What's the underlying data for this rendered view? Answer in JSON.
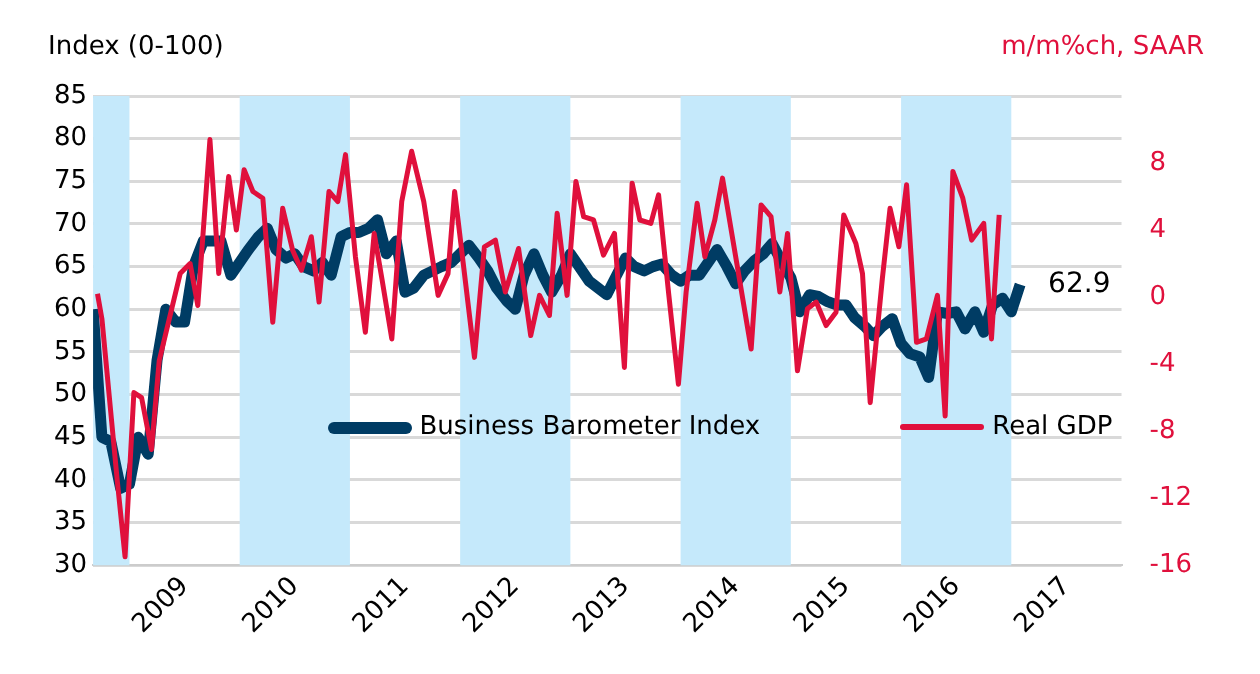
{
  "chart_data": {
    "type": "line",
    "ylabel": "Index (0-100)",
    "y2label": "m/m%ch, SAAR",
    "xlim": [
      2008.67,
      2018
    ],
    "xticks": [
      {
        "value": 2009.5,
        "label": "2009"
      },
      {
        "value": 2010.5,
        "label": "2010"
      },
      {
        "value": 2011.5,
        "label": "2011"
      },
      {
        "value": 2012.5,
        "label": "2012"
      },
      {
        "value": 2013.5,
        "label": "2013"
      },
      {
        "value": 2014.5,
        "label": "2014"
      },
      {
        "value": 2015.5,
        "label": "2015"
      },
      {
        "value": 2016.5,
        "label": "2016"
      },
      {
        "value": 2017.5,
        "label": "2017"
      }
    ],
    "ylim": [
      30,
      85
    ],
    "yticks": [
      30,
      35,
      40,
      45,
      50,
      55,
      60,
      65,
      70,
      75,
      80,
      85
    ],
    "y2lim": [
      -16,
      12
    ],
    "y2ticks": [
      -16,
      -12,
      -8,
      -4,
      0,
      4,
      8
    ],
    "grid": "y",
    "legend": "bottom",
    "marker": "none",
    "bands": [
      {
        "axis": "x",
        "from": 2008.67,
        "to": 2009,
        "color": "#c5e9fb"
      },
      {
        "axis": "x",
        "from": 2010,
        "to": 2011,
        "color": "#c5e9fb"
      },
      {
        "axis": "x",
        "from": 2012,
        "to": 2013,
        "color": "#c5e9fb"
      },
      {
        "axis": "x",
        "from": 2014,
        "to": 2015,
        "color": "#c5e9fb"
      },
      {
        "axis": "x",
        "from": 2016,
        "to": 2017,
        "color": "#c5e9fb"
      }
    ],
    "annotations": [
      {
        "text": "62.9",
        "x": 2017.08,
        "y": 62.9
      }
    ],
    "series": [
      {
        "name": "Business Barometer Index",
        "color": "#003c64",
        "x": [
          2008.67,
          2008.75,
          2008.83,
          2008.92,
          2009.0,
          2009.08,
          2009.17,
          2009.25,
          2009.33,
          2009.42,
          2009.5,
          2009.58,
          2009.67,
          2009.75,
          2009.83,
          2009.92,
          2010.0,
          2010.08,
          2010.17,
          2010.25,
          2010.33,
          2010.42,
          2010.5,
          2010.58,
          2010.67,
          2010.75,
          2010.83,
          2010.92,
          2011.0,
          2011.08,
          2011.17,
          2011.25,
          2011.33,
          2011.42,
          2011.5,
          2011.58,
          2011.67,
          2011.75,
          2011.83,
          2011.92,
          2012.0,
          2012.08,
          2012.17,
          2012.25,
          2012.33,
          2012.42,
          2012.5,
          2012.58,
          2012.67,
          2012.75,
          2012.83,
          2012.92,
          2013.0,
          2013.08,
          2013.17,
          2013.25,
          2013.33,
          2013.42,
          2013.5,
          2013.58,
          2013.67,
          2013.75,
          2013.83,
          2013.92,
          2014.0,
          2014.08,
          2014.17,
          2014.25,
          2014.33,
          2014.42,
          2014.5,
          2014.58,
          2014.67,
          2014.75,
          2014.83,
          2014.92,
          2015.0,
          2015.08,
          2015.17,
          2015.25,
          2015.33,
          2015.42,
          2015.5,
          2015.58,
          2015.67,
          2015.75,
          2015.83,
          2015.92,
          2016.0,
          2016.08,
          2016.17,
          2016.25,
          2016.33,
          2016.42,
          2016.5,
          2016.58,
          2016.67,
          2016.75,
          2016.83,
          2016.92,
          2017.0,
          2017.08
        ],
        "values": [
          60,
          45,
          44.5,
          39,
          39.5,
          45,
          43,
          54,
          60,
          58.5,
          58.5,
          65,
          68,
          68,
          68,
          64,
          65.5,
          67,
          68.5,
          69.5,
          67,
          66,
          66.5,
          65,
          64.5,
          65.5,
          64,
          68.5,
          69,
          69,
          69.5,
          70.5,
          66.5,
          68,
          62,
          62.5,
          64,
          64.5,
          65,
          65.5,
          66.5,
          67.5,
          66,
          64.5,
          62.5,
          61,
          60,
          64,
          66.5,
          64,
          62,
          64,
          66.5,
          65,
          63.3,
          62.5,
          61.7,
          64,
          66,
          65,
          64.5,
          65,
          65.3,
          64,
          63.3,
          64,
          64,
          65.5,
          67,
          65,
          63,
          64.5,
          65.7,
          66.5,
          67.7,
          65.5,
          63.7,
          59.7,
          61.7,
          61.5,
          60.9,
          60.5,
          60.5,
          59,
          58,
          56.9,
          58,
          58.9,
          56,
          54.8,
          54.4,
          52,
          59.7,
          59.5,
          59.7,
          57.7,
          59.7,
          57.3,
          60.5,
          61.3,
          59.7,
          62.9
        ]
      },
      {
        "name": "Real GDP",
        "color": "#e0103c",
        "axis": "y2",
        "x": [
          2008.71,
          2008.75,
          2008.89,
          2008.96,
          2009.04,
          2009.11,
          2009.2,
          2009.27,
          2009.46,
          2009.55,
          2009.62,
          2009.73,
          2009.81,
          2009.9,
          2009.97,
          2010.04,
          2010.12,
          2010.21,
          2010.3,
          2010.39,
          2010.48,
          2010.56,
          2010.65,
          2010.72,
          2010.81,
          2010.89,
          2010.96,
          2011.05,
          2011.14,
          2011.22,
          2011.29,
          2011.38,
          2011.47,
          2011.56,
          2011.67,
          2011.8,
          2011.89,
          2011.95,
          2012.13,
          2012.22,
          2012.32,
          2012.41,
          2012.53,
          2012.64,
          2012.72,
          2012.81,
          2012.88,
          2012.97,
          2013.05,
          2013.12,
          2013.21,
          2013.3,
          2013.4,
          2013.49,
          2013.56,
          2013.63,
          2013.73,
          2013.8,
          2013.89,
          2013.98,
          2014.05,
          2014.15,
          2014.22,
          2014.31,
          2014.38,
          2014.64,
          2014.73,
          2014.82,
          2014.9,
          2014.97,
          2015.06,
          2015.15,
          2015.23,
          2015.32,
          2015.41,
          2015.48,
          2015.59,
          2015.65,
          2015.72,
          2015.83,
          2015.9,
          2015.98,
          2016.05,
          2016.14,
          2016.23,
          2016.33,
          2016.4,
          2016.47,
          2016.56,
          2016.64,
          2016.75,
          2016.82,
          2016.89
        ],
        "values": [
          0.2,
          -1.3,
          -11,
          -15.5,
          -5.7,
          -6,
          -9.1,
          -3.8,
          1.4,
          2,
          -0.5,
          9.4,
          1.4,
          7.2,
          4,
          7.6,
          6.3,
          5.9,
          -1.5,
          5.3,
          2.8,
          1.6,
          3.6,
          -0.3,
          6.3,
          5.7,
          8.5,
          2.4,
          -2.1,
          3.8,
          1.1,
          -2.5,
          5.7,
          8.7,
          5.7,
          0.1,
          1.4,
          6.3,
          -3.6,
          3,
          3.4,
          0.3,
          2.9,
          -2.3,
          0.1,
          -1.1,
          5,
          0.1,
          6.9,
          4.8,
          4.6,
          2.5,
          3.8,
          -4.2,
          6.8,
          4.6,
          4.4,
          6.1,
          0.3,
          -5.2,
          0.3,
          5.6,
          2.4,
          4.6,
          7.1,
          -3.1,
          5.5,
          4.8,
          0.3,
          3.8,
          -4.4,
          -0.7,
          -0.3,
          -1.7,
          -0.9,
          4.9,
          3.2,
          1.4,
          -6.3,
          1.1,
          5.3,
          3,
          6.7,
          -2.7,
          -2.5,
          0.1,
          -7.1,
          7.5,
          5.9,
          3.4,
          4.4,
          -2.5,
          4.9
        ]
      }
    ]
  }
}
